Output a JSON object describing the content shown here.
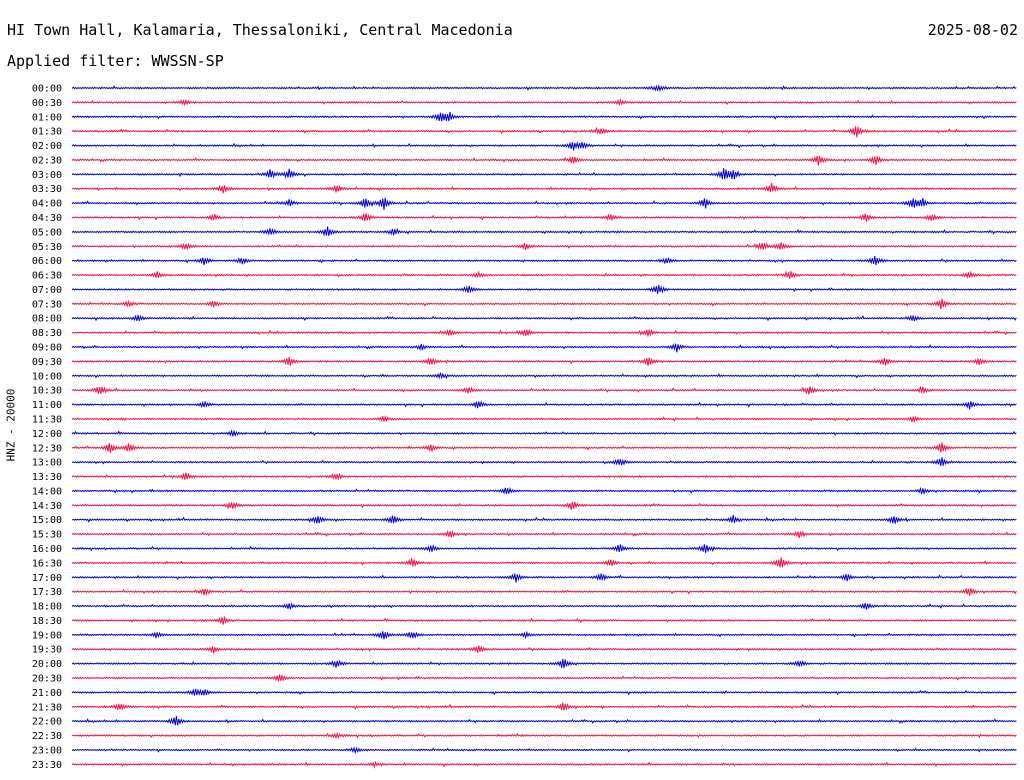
{
  "header": {
    "station": "HI Town Hall, Kalamaria, Thessaloniki, Central Macedonia",
    "date": "2025-08-02",
    "filter": "Applied filter: WWSSN-SP",
    "channel": "HNZ - 20000"
  },
  "chart_data": {
    "type": "line",
    "title": "HI Town Hall, Kalamaria, Thessaloniki, Central Macedonia",
    "ylabel": "HNZ - 20000",
    "xlabel": "",
    "row_interval_minutes": 30,
    "colors": {
      "even_row": "#0000cc",
      "odd_row": "#ee1144"
    },
    "rows": [
      "00:00",
      "00:30",
      "01:00",
      "01:30",
      "02:00",
      "02:30",
      "03:00",
      "03:30",
      "04:00",
      "04:30",
      "05:00",
      "05:30",
      "06:00",
      "06:30",
      "07:00",
      "07:30",
      "08:00",
      "08:30",
      "09:00",
      "09:30",
      "10:00",
      "10:30",
      "11:00",
      "11:30",
      "12:00",
      "12:30",
      "13:00",
      "13:30",
      "14:00",
      "14:30",
      "15:00",
      "15:30",
      "16:00",
      "16:30",
      "17:00",
      "17:30",
      "18:00",
      "18:30",
      "19:00",
      "19:30",
      "20:00",
      "20:30",
      "21:00",
      "21:30",
      "22:00",
      "22:30",
      "23:00",
      "23:30"
    ],
    "bursts": [
      [
        [
          0.62,
          0.5
        ]
      ],
      [
        [
          0.12,
          0.4
        ],
        [
          0.58,
          0.4
        ]
      ],
      [
        [
          0.39,
          0.8
        ],
        [
          0.4,
          0.6
        ]
      ],
      [
        [
          0.56,
          0.5
        ],
        [
          0.83,
          0.9
        ]
      ],
      [
        [
          0.53,
          0.7
        ],
        [
          0.54,
          0.5
        ]
      ],
      [
        [
          0.53,
          0.6
        ],
        [
          0.79,
          0.8
        ],
        [
          0.85,
          0.8
        ]
      ],
      [
        [
          0.21,
          0.7
        ],
        [
          0.23,
          0.8
        ],
        [
          0.69,
          1.0
        ],
        [
          0.7,
          0.8
        ]
      ],
      [
        [
          0.16,
          0.7
        ],
        [
          0.28,
          0.6
        ],
        [
          0.74,
          0.8
        ]
      ],
      [
        [
          0.23,
          0.5
        ],
        [
          0.31,
          0.8
        ],
        [
          0.33,
          1.0
        ],
        [
          0.67,
          0.8
        ],
        [
          0.89,
          0.9
        ],
        [
          0.9,
          0.6
        ]
      ],
      [
        [
          0.15,
          0.5
        ],
        [
          0.31,
          0.7
        ],
        [
          0.57,
          0.5
        ],
        [
          0.84,
          0.7
        ],
        [
          0.91,
          0.6
        ]
      ],
      [
        [
          0.21,
          0.6
        ],
        [
          0.27,
          0.9
        ],
        [
          0.34,
          0.5
        ]
      ],
      [
        [
          0.12,
          0.5
        ],
        [
          0.48,
          0.5
        ],
        [
          0.73,
          0.7
        ],
        [
          0.75,
          0.6
        ]
      ],
      [
        [
          0.14,
          0.6
        ],
        [
          0.18,
          0.5
        ],
        [
          0.63,
          0.5
        ],
        [
          0.85,
          0.8
        ]
      ],
      [
        [
          0.09,
          0.5
        ],
        [
          0.43,
          0.4
        ],
        [
          0.76,
          0.6
        ],
        [
          0.95,
          0.5
        ]
      ],
      [
        [
          0.42,
          0.6
        ],
        [
          0.62,
          0.9
        ]
      ],
      [
        [
          0.06,
          0.4
        ],
        [
          0.15,
          0.5
        ],
        [
          0.92,
          0.8
        ]
      ],
      [
        [
          0.07,
          0.5
        ],
        [
          0.89,
          0.5
        ]
      ],
      [
        [
          0.4,
          0.5
        ],
        [
          0.48,
          0.6
        ],
        [
          0.61,
          0.6
        ]
      ],
      [
        [
          0.37,
          0.4
        ],
        [
          0.64,
          0.7
        ]
      ],
      [
        [
          0.23,
          0.8
        ],
        [
          0.38,
          0.6
        ],
        [
          0.61,
          0.7
        ],
        [
          0.86,
          0.6
        ],
        [
          0.96,
          0.5
        ]
      ],
      [
        [
          0.39,
          0.4
        ]
      ],
      [
        [
          0.03,
          0.8
        ],
        [
          0.42,
          0.5
        ],
        [
          0.78,
          0.7
        ],
        [
          0.9,
          0.5
        ]
      ],
      [
        [
          0.14,
          0.5
        ],
        [
          0.43,
          0.6
        ],
        [
          0.95,
          0.6
        ]
      ],
      [
        [
          0.33,
          0.4
        ],
        [
          0.89,
          0.5
        ]
      ],
      [
        [
          0.17,
          0.4
        ]
      ],
      [
        [
          0.04,
          0.8
        ],
        [
          0.06,
          0.7
        ],
        [
          0.38,
          0.6
        ],
        [
          0.92,
          0.9
        ]
      ],
      [
        [
          0.58,
          0.6
        ],
        [
          0.92,
          0.8
        ]
      ],
      [
        [
          0.12,
          0.6
        ],
        [
          0.28,
          0.6
        ]
      ],
      [
        [
          0.46,
          0.6
        ],
        [
          0.9,
          0.5
        ]
      ],
      [
        [
          0.17,
          0.6
        ],
        [
          0.53,
          0.7
        ]
      ],
      [
        [
          0.26,
          0.7
        ],
        [
          0.34,
          0.8
        ],
        [
          0.7,
          0.6
        ],
        [
          0.87,
          0.7
        ]
      ],
      [
        [
          0.4,
          0.5
        ],
        [
          0.77,
          0.6
        ]
      ],
      [
        [
          0.38,
          0.5
        ],
        [
          0.58,
          0.7
        ],
        [
          0.67,
          0.7
        ]
      ],
      [
        [
          0.36,
          0.7
        ],
        [
          0.57,
          0.6
        ],
        [
          0.75,
          0.9
        ]
      ],
      [
        [
          0.47,
          0.7
        ],
        [
          0.56,
          0.6
        ],
        [
          0.82,
          0.6
        ]
      ],
      [
        [
          0.14,
          0.5
        ],
        [
          0.95,
          0.6
        ]
      ],
      [
        [
          0.23,
          0.5
        ],
        [
          0.84,
          0.6
        ]
      ],
      [
        [
          0.16,
          0.7
        ]
      ],
      [
        [
          0.09,
          0.4
        ],
        [
          0.33,
          0.8
        ],
        [
          0.36,
          0.6
        ],
        [
          0.48,
          0.4
        ]
      ],
      [
        [
          0.15,
          0.5
        ],
        [
          0.43,
          0.6
        ]
      ],
      [
        [
          0.28,
          0.6
        ],
        [
          0.52,
          0.9
        ],
        [
          0.77,
          0.6
        ]
      ],
      [
        [
          0.22,
          0.6
        ]
      ],
      [
        [
          0.13,
          0.5
        ],
        [
          0.14,
          0.6
        ]
      ],
      [
        [
          0.05,
          0.6
        ],
        [
          0.52,
          0.6
        ]
      ],
      [
        [
          0.11,
          0.9
        ]
      ],
      [
        [
          0.28,
          0.4
        ]
      ],
      [
        [
          0.3,
          0.4
        ]
      ],
      [
        [
          0.32,
          0.3
        ]
      ]
    ]
  }
}
